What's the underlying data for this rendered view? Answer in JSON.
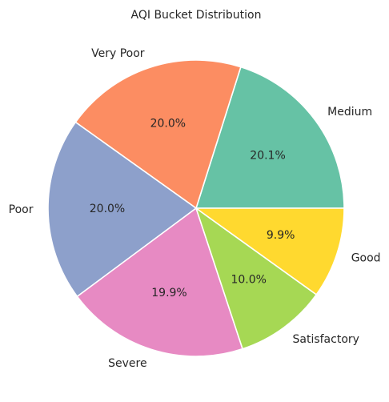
{
  "chart_data": {
    "type": "pie",
    "title": "AQI Bucket Distribution",
    "slices": [
      {
        "label": "Medium",
        "value": 20.1,
        "pct_label": "20.1%",
        "color": "#66c2a5"
      },
      {
        "label": "Very Poor",
        "value": 20.0,
        "pct_label": "20.0%",
        "color": "#fc8d62"
      },
      {
        "label": "Poor",
        "value": 20.0,
        "pct_label": "20.0%",
        "color": "#8da0cb"
      },
      {
        "label": "Severe",
        "value": 19.9,
        "pct_label": "19.9%",
        "color": "#e78ac3"
      },
      {
        "label": "Satisfactory",
        "value": 10.0,
        "pct_label": "10.0%",
        "color": "#a6d854"
      },
      {
        "label": "Good",
        "value": 9.9,
        "pct_label": "9.9%",
        "color": "#ffd92f"
      }
    ],
    "start_angle": 0,
    "direction": "counterclockwise",
    "legend": "none"
  }
}
